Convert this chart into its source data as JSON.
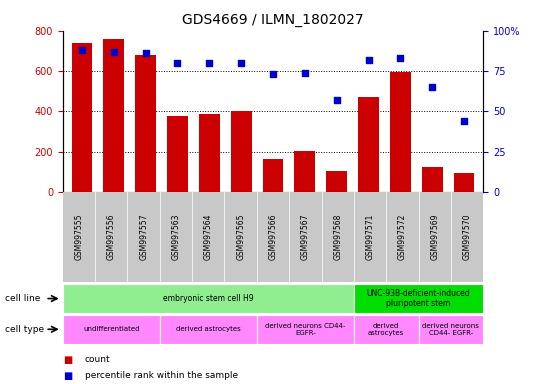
{
  "title": "GDS4669 / ILMN_1802027",
  "samples": [
    "GSM997555",
    "GSM997556",
    "GSM997557",
    "GSM997563",
    "GSM997564",
    "GSM997565",
    "GSM997566",
    "GSM997567",
    "GSM997568",
    "GSM997571",
    "GSM997572",
    "GSM997569",
    "GSM997570"
  ],
  "counts": [
    740,
    760,
    680,
    375,
    385,
    400,
    165,
    205,
    105,
    470,
    595,
    125,
    95
  ],
  "percentiles": [
    88,
    87,
    86,
    80,
    80,
    80,
    73,
    74,
    57,
    82,
    83,
    65,
    44
  ],
  "bar_color": "#cc0000",
  "dot_color": "#0000cc",
  "ylim_left": [
    0,
    800
  ],
  "ylim_right": [
    0,
    100
  ],
  "yticks_left": [
    0,
    200,
    400,
    600,
    800
  ],
  "yticks_right": [
    0,
    25,
    50,
    75,
    100
  ],
  "ytick_labels_right": [
    "0",
    "25",
    "50",
    "75",
    "100%"
  ],
  "cell_line_groups": [
    {
      "label": "embryonic stem cell H9",
      "start": 0,
      "end": 9,
      "color": "#90ee90"
    },
    {
      "label": "UNC-93B-deficient-induced\npluripotent stem",
      "start": 9,
      "end": 13,
      "color": "#00dd00"
    }
  ],
  "cell_type_groups": [
    {
      "label": "undifferentiated",
      "start": 0,
      "end": 3,
      "color": "#ff88ff"
    },
    {
      "label": "derived astrocytes",
      "start": 3,
      "end": 6,
      "color": "#ff88ff"
    },
    {
      "label": "derived neurons CD44-\nEGFR-",
      "start": 6,
      "end": 9,
      "color": "#ff88ff"
    },
    {
      "label": "derived\nastrocytes",
      "start": 9,
      "end": 11,
      "color": "#ff88ff"
    },
    {
      "label": "derived neurons\nCD44- EGFR-",
      "start": 11,
      "end": 13,
      "color": "#ff88ff"
    }
  ],
  "background_color": "#ffffff",
  "tick_bg_color": "#c8c8c8",
  "title_fontsize": 10,
  "tick_fontsize": 7,
  "label_fontsize": 7,
  "annot_fontsize": 6
}
